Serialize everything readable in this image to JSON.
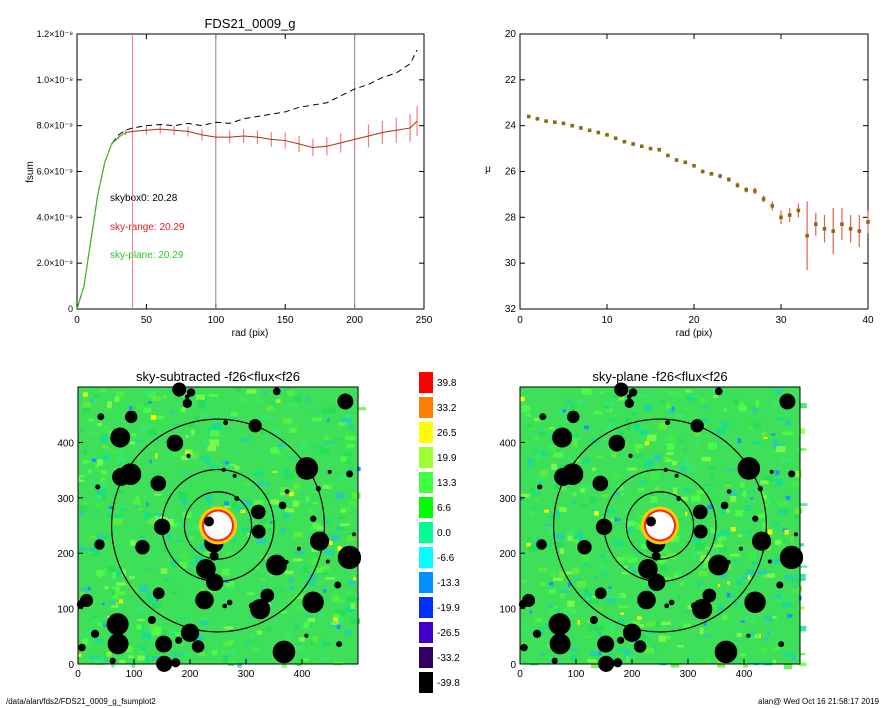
{
  "footer": {
    "left": "/data/alan/fds2/FDS21_0009_g_fsumplot2",
    "right": "alan@  Wed Oct 16 21:58:17 2019"
  },
  "chart_data": [
    {
      "type": "line",
      "title": "FDS21_0009_g",
      "xlabel": "rad (pix)",
      "ylabel": "fsum",
      "xlim": [
        0,
        250
      ],
      "ylim": [
        0,
        1.2e-08
      ],
      "xticks": [
        "0",
        "50",
        "100",
        "150",
        "200",
        "250"
      ],
      "yticks": [
        "0",
        "2.0×10⁻⁹",
        "4.0×10⁻⁹",
        "6.0×10⁻⁹",
        "8.0×10⁻⁹",
        "1.0×10⁻⁸",
        "1.2×10⁻⁸"
      ],
      "vlines": [
        {
          "x": 40,
          "color": "#f08080"
        },
        {
          "x": 100,
          "color": "#888888"
        },
        {
          "x": 200,
          "color": "#888888"
        }
      ],
      "annotations": [
        {
          "text": "skybox0: 20.28",
          "color": "#000000"
        },
        {
          "text": "sky-range: 20.29",
          "color": "#e02020"
        },
        {
          "text": "sky-plane: 20.29",
          "color": "#22cc22"
        }
      ],
      "series": [
        {
          "style": "dashed",
          "color": "#000000",
          "x": [
            0,
            5,
            10,
            15,
            20,
            25,
            30,
            35,
            40,
            50,
            60,
            70,
            80,
            90,
            100,
            110,
            120,
            130,
            140,
            150,
            160,
            170,
            180,
            190,
            200,
            210,
            220,
            230,
            240,
            245
          ],
          "y": [
            0,
            1e-09,
            3e-09,
            5e-09,
            6.4e-09,
            7.2e-09,
            7.6e-09,
            7.8e-09,
            7.9e-09,
            8e-09,
            8.05e-09,
            8e-09,
            8.1e-09,
            8e-09,
            8.15e-09,
            8.1e-09,
            8.3e-09,
            8.4e-09,
            8.5e-09,
            8.6e-09,
            8.8e-09,
            8.9e-09,
            9e-09,
            9.3e-09,
            9.6e-09,
            9.8e-09,
            1.01e-08,
            1.03e-08,
            1.07e-08,
            1.13e-08
          ]
        },
        {
          "style": "solid",
          "color": "#b03010",
          "errcolor": "#f08080",
          "x": [
            0,
            5,
            10,
            15,
            20,
            25,
            30,
            35,
            40,
            50,
            60,
            70,
            80,
            90,
            100,
            110,
            120,
            130,
            140,
            150,
            160,
            170,
            180,
            190,
            200,
            210,
            220,
            230,
            240,
            245
          ],
          "y": [
            0,
            1e-09,
            3e-09,
            5e-09,
            6.4e-09,
            7.2e-09,
            7.5e-09,
            7.7e-09,
            7.75e-09,
            7.8e-09,
            7.85e-09,
            7.8e-09,
            7.75e-09,
            7.6e-09,
            7.5e-09,
            7.5e-09,
            7.55e-09,
            7.5e-09,
            7.4e-09,
            7.35e-09,
            7.2e-09,
            7.05e-09,
            7.1e-09,
            7.25e-09,
            7.4e-09,
            7.55e-09,
            7.7e-09,
            7.8e-09,
            7.9e-09,
            8.2e-09
          ],
          "err": [
            0,
            0,
            0,
            0,
            0,
            5e-11,
            1e-10,
            1.2e-10,
            1.5e-10,
            1.8e-10,
            2e-10,
            2e-10,
            2.2e-10,
            2.5e-10,
            2.5e-10,
            2.8e-10,
            3e-10,
            3e-10,
            3.2e-10,
            3.5e-10,
            3.5e-10,
            3.8e-10,
            4e-10,
            4.2e-10,
            4.5e-10,
            5e-10,
            5e-10,
            5.5e-10,
            6e-10,
            6.5e-10
          ]
        }
      ]
    },
    {
      "type": "scatter",
      "title": "",
      "xlabel": "rad (pix)",
      "ylabel": "μ",
      "xlim": [
        0,
        40
      ],
      "ylim": [
        32,
        20
      ],
      "xticks": [
        "0",
        "10",
        "20",
        "30",
        "40"
      ],
      "yticks": [
        "20",
        "22",
        "24",
        "26",
        "28",
        "30",
        "32"
      ],
      "series": [
        {
          "color": "#8a6a10",
          "errcolor": "#e06050",
          "x": [
            1,
            2,
            3,
            4,
            5,
            6,
            7,
            8,
            9,
            10,
            11,
            12,
            13,
            14,
            15,
            16,
            17,
            18,
            19,
            20,
            21,
            22,
            23,
            24,
            25,
            26,
            27,
            28,
            29,
            30,
            31,
            32,
            33,
            34,
            35,
            36,
            37,
            38,
            39,
            40
          ],
          "y": [
            23.6,
            23.7,
            23.8,
            23.85,
            23.9,
            24.0,
            24.1,
            24.2,
            24.3,
            24.4,
            24.55,
            24.7,
            24.8,
            24.9,
            25.0,
            25.05,
            25.3,
            25.5,
            25.6,
            25.75,
            26.0,
            26.1,
            26.2,
            26.35,
            26.6,
            26.8,
            26.85,
            27.2,
            27.5,
            28.0,
            27.9,
            27.7,
            28.8,
            28.3,
            28.5,
            28.6,
            28.3,
            28.5,
            28.6,
            28.2
          ],
          "err": [
            0.05,
            0.05,
            0.05,
            0.05,
            0.05,
            0.05,
            0.05,
            0.05,
            0.05,
            0.05,
            0.05,
            0.05,
            0.05,
            0.05,
            0.05,
            0.05,
            0.06,
            0.06,
            0.07,
            0.07,
            0.08,
            0.08,
            0.1,
            0.1,
            0.12,
            0.12,
            0.15,
            0.15,
            0.2,
            0.3,
            0.3,
            0.3,
            1.5,
            0.5,
            0.6,
            1.0,
            0.7,
            0.6,
            0.7,
            0.5
          ]
        }
      ]
    },
    {
      "type": "heatmap",
      "title": "sky-subtracted -f26<flux<f26",
      "xlim": [
        0,
        500
      ],
      "ylim": [
        0,
        500
      ],
      "xticks": [
        "0",
        "100",
        "200",
        "300",
        "400"
      ],
      "yticks": [
        "0",
        "100",
        "200",
        "300",
        "400"
      ],
      "circles_r": [
        60,
        100,
        190
      ]
    },
    {
      "type": "heatmap",
      "title": "sky-plane -f26<flux<f26",
      "xlim": [
        0,
        500
      ],
      "ylim": [
        0,
        500
      ],
      "xticks": [
        "0",
        "100",
        "200",
        "300",
        "400"
      ],
      "yticks": [
        "0",
        "100",
        "200",
        "300",
        "400"
      ],
      "circles_r": [
        60,
        100,
        190
      ]
    },
    {
      "type": "colorbar",
      "labels": [
        "39.8",
        "33.2",
        "26.5",
        "19.9",
        "13.3",
        "6.6",
        "0.0",
        "-6.6",
        "-13.3",
        "-19.9",
        "-26.5",
        "-33.2",
        "-39.8"
      ],
      "colors": [
        "#ff0000",
        "#ff7f00",
        "#ffff00",
        "#a0ff30",
        "#40ff40",
        "#00ff00",
        "#00ff90",
        "#00ffff",
        "#0090ff",
        "#0030ff",
        "#4000cc",
        "#300060",
        "#000000"
      ]
    }
  ]
}
